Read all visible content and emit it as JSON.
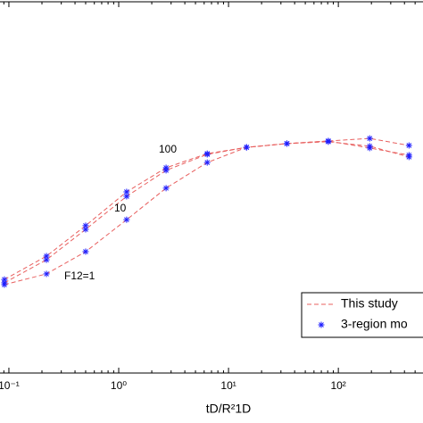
{
  "chart_data": {
    "type": "line",
    "x_label": "tD/R²1D",
    "log_x": true,
    "xlim": [
      0.083,
      590
    ],
    "xticks": [
      {
        "value": 0.1,
        "label": "10⁻¹"
      },
      {
        "value": 1,
        "label": "10⁰"
      },
      {
        "value": 10,
        "label": "10¹"
      },
      {
        "value": 100,
        "label": "10²"
      }
    ],
    "ylim": [
      0,
      1
    ],
    "x": [
      0.091,
      0.22,
      0.5,
      1.18,
      2.7,
      6.4,
      14.6,
      34,
      81,
      193,
      440
    ],
    "line_color": "#e8605f",
    "marker_color": "#1f1fff",
    "series": [
      {
        "values": [
          0.252,
          0.315,
          0.397,
          0.488,
          0.553,
          0.591,
          0.608,
          0.618,
          0.625,
          0.606,
          0.587
        ]
      },
      {
        "values": [
          0.243,
          0.305,
          0.387,
          0.476,
          0.546,
          0.589,
          0.608,
          0.618,
          0.623,
          0.611,
          0.582
        ]
      },
      {
        "values": [
          0.238,
          0.267,
          0.327,
          0.413,
          0.498,
          0.567,
          0.608,
          0.618,
          0.625,
          0.632,
          0.613
        ]
      }
    ],
    "annotations": [
      "100",
      "10",
      "F12=1"
    ],
    "legend": [
      "This study",
      "3-region mo"
    ],
    "legend_position": "lower right"
  }
}
